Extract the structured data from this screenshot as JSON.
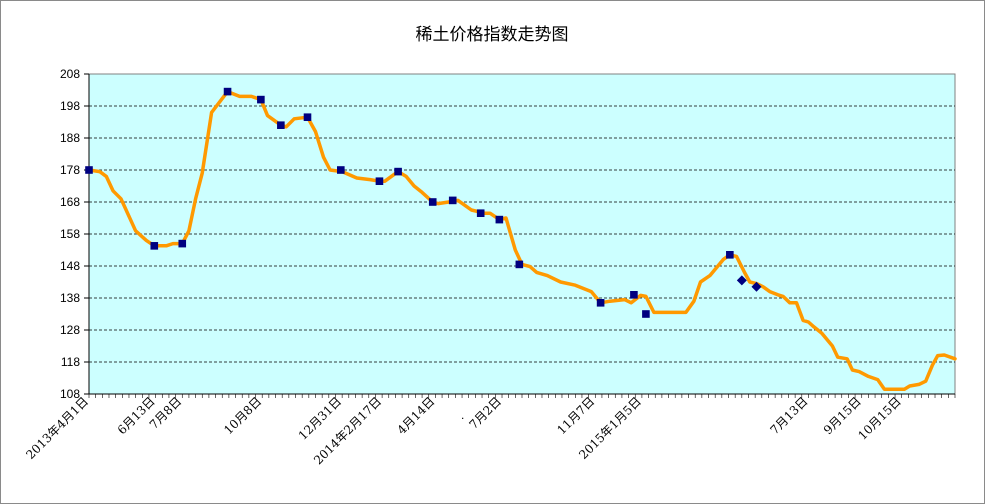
{
  "chart_data": {
    "type": "line",
    "title": "稀土价格指数走势图",
    "xlabel": "",
    "ylabel": "",
    "ylim": [
      108,
      208
    ],
    "y_ticks": [
      108,
      118,
      128,
      138,
      148,
      158,
      168,
      178,
      188,
      198,
      208
    ],
    "x_range": [
      0,
      62
    ],
    "x_tick_labels": [
      {
        "label": "2013年4月1日",
        "x": 0
      },
      {
        "label": "6月13日",
        "x": 5
      },
      {
        "label": "7月8日",
        "x": 7
      },
      {
        "label": "10月8日",
        "x": 13
      },
      {
        "label": "12月31日",
        "x": 19
      },
      {
        "label": "2014年2月17日",
        "x": 22
      },
      {
        "label": "4月14日",
        "x": 26
      },
      {
        "label": "7月2日",
        "x": 31
      },
      {
        "label": "11月7日",
        "x": 38
      },
      {
        "label": "2015年1月5日",
        "x": 41.5
      },
      {
        "label": "7月13日",
        "x": 54
      },
      {
        "label": "9月15日",
        "x": 58
      },
      {
        "label": "10月15日",
        "x": 61
      }
    ],
    "grid": {
      "horizontal": true,
      "vertical": false
    },
    "plot_background": "#ccffff",
    "series": [
      {
        "name": "",
        "color": "#ff9900",
        "marker_color": "#000080",
        "points": [
          {
            "x": 0,
            "y": 178
          },
          {
            "x": 0.8,
            "y": 177.5
          },
          {
            "x": 1.3,
            "y": 176
          },
          {
            "x": 1.8,
            "y": 171.5
          },
          {
            "x": 2.4,
            "y": 169
          },
          {
            "x": 3.5,
            "y": 159
          },
          {
            "x": 4.3,
            "y": 156
          },
          {
            "x": 4.9,
            "y": 154.3
          },
          {
            "x": 5.8,
            "y": 154.3
          },
          {
            "x": 6.3,
            "y": 155
          },
          {
            "x": 7,
            "y": 155
          },
          {
            "x": 7.5,
            "y": 159
          },
          {
            "x": 8,
            "y": 169
          },
          {
            "x": 8.5,
            "y": 177
          },
          {
            "x": 9.2,
            "y": 196
          },
          {
            "x": 10.4,
            "y": 202.5
          },
          {
            "x": 11.3,
            "y": 201
          },
          {
            "x": 12.2,
            "y": 201
          },
          {
            "x": 12.9,
            "y": 200
          },
          {
            "x": 13.4,
            "y": 195
          },
          {
            "x": 14.4,
            "y": 192
          },
          {
            "x": 14.8,
            "y": 191.5
          },
          {
            "x": 15.4,
            "y": 194
          },
          {
            "x": 16.4,
            "y": 194.5
          },
          {
            "x": 17,
            "y": 190
          },
          {
            "x": 17.6,
            "y": 182
          },
          {
            "x": 18.1,
            "y": 178
          },
          {
            "x": 19,
            "y": 177.5
          },
          {
            "x": 20.1,
            "y": 175.5
          },
          {
            "x": 21.1,
            "y": 175
          },
          {
            "x": 21.8,
            "y": 174.5
          },
          {
            "x": 22.2,
            "y": 174.5
          },
          {
            "x": 23.2,
            "y": 177.5
          },
          {
            "x": 23.8,
            "y": 176
          },
          {
            "x": 24.4,
            "y": 173
          },
          {
            "x": 25,
            "y": 171
          },
          {
            "x": 25.8,
            "y": 168
          },
          {
            "x": 26.2,
            "y": 167.5
          },
          {
            "x": 27,
            "y": 168
          },
          {
            "x": 27.7,
            "y": 168.5
          },
          {
            "x": 28.7,
            "y": 165.5
          },
          {
            "x": 29.7,
            "y": 164.5
          },
          {
            "x": 30.1,
            "y": 164.5
          },
          {
            "x": 30.8,
            "y": 162.5
          },
          {
            "x": 31.3,
            "y": 163
          },
          {
            "x": 32,
            "y": 153
          },
          {
            "x": 32.5,
            "y": 148.5
          },
          {
            "x": 33.1,
            "y": 147.8
          },
          {
            "x": 33.6,
            "y": 146
          },
          {
            "x": 34.4,
            "y": 145
          },
          {
            "x": 35.4,
            "y": 143
          },
          {
            "x": 36.5,
            "y": 142
          },
          {
            "x": 37.7,
            "y": 140
          },
          {
            "x": 38.4,
            "y": 136.5
          },
          {
            "x": 39.1,
            "y": 137
          },
          {
            "x": 40.2,
            "y": 137.5
          },
          {
            "x": 40.7,
            "y": 136.5
          },
          {
            "x": 41.4,
            "y": 138.8
          },
          {
            "x": 41.8,
            "y": 138.5
          },
          {
            "x": 42.4,
            "y": 133.5
          },
          {
            "x": 43.4,
            "y": 133.5
          },
          {
            "x": 44.8,
            "y": 133.5
          },
          {
            "x": 45.4,
            "y": 137
          },
          {
            "x": 45.9,
            "y": 143
          },
          {
            "x": 46.6,
            "y": 145
          },
          {
            "x": 47.6,
            "y": 150
          },
          {
            "x": 48.1,
            "y": 151.5
          },
          {
            "x": 48.6,
            "y": 151
          },
          {
            "x": 49.2,
            "y": 146
          },
          {
            "x": 49.6,
            "y": 143
          },
          {
            "x": 50.1,
            "y": 142.5
          },
          {
            "x": 50.6,
            "y": 141.5
          },
          {
            "x": 51.1,
            "y": 140
          },
          {
            "x": 51.7,
            "y": 139
          },
          {
            "x": 52.1,
            "y": 138.5
          },
          {
            "x": 52.6,
            "y": 136.5
          },
          {
            "x": 53.1,
            "y": 136.5
          },
          {
            "x": 53.6,
            "y": 131
          },
          {
            "x": 54,
            "y": 130.5
          },
          {
            "x": 54.4,
            "y": 129
          },
          {
            "x": 55,
            "y": 127
          },
          {
            "x": 55.8,
            "y": 123
          },
          {
            "x": 56.2,
            "y": 119.5
          },
          {
            "x": 56.9,
            "y": 119
          },
          {
            "x": 57.3,
            "y": 115.5
          },
          {
            "x": 57.8,
            "y": 115
          },
          {
            "x": 58.5,
            "y": 113.5
          },
          {
            "x": 59.2,
            "y": 112.5
          },
          {
            "x": 59.7,
            "y": 109.5
          },
          {
            "x": 60.5,
            "y": 109.5
          },
          {
            "x": 61.2,
            "y": 109.5
          },
          {
            "x": 61.6,
            "y": 110.5
          },
          {
            "x": 62.3,
            "y": 111
          },
          {
            "x": 62.8,
            "y": 112
          },
          {
            "x": 63.3,
            "y": 117
          },
          {
            "x": 63.7,
            "y": 120
          },
          {
            "x": 64.2,
            "y": 120.2
          },
          {
            "x": 65,
            "y": 119
          }
        ],
        "markers": [
          {
            "x": 0,
            "y": 178,
            "shape": "square"
          },
          {
            "x": 4.9,
            "y": 154.3,
            "shape": "square"
          },
          {
            "x": 7,
            "y": 155,
            "shape": "square"
          },
          {
            "x": 10.4,
            "y": 202.5,
            "shape": "square"
          },
          {
            "x": 12.9,
            "y": 200,
            "shape": "square"
          },
          {
            "x": 14.4,
            "y": 192,
            "shape": "square"
          },
          {
            "x": 16.4,
            "y": 194.5,
            "shape": "square"
          },
          {
            "x": 18.9,
            "y": 178,
            "shape": "square"
          },
          {
            "x": 21.8,
            "y": 174.5,
            "shape": "square"
          },
          {
            "x": 23.2,
            "y": 177.5,
            "shape": "square"
          },
          {
            "x": 25.8,
            "y": 168,
            "shape": "square"
          },
          {
            "x": 27.3,
            "y": 168.5,
            "shape": "square"
          },
          {
            "x": 29.4,
            "y": 164.5,
            "shape": "square"
          },
          {
            "x": 30.8,
            "y": 162.5,
            "shape": "square"
          },
          {
            "x": 32.3,
            "y": 148.5,
            "shape": "square"
          },
          {
            "x": 38.4,
            "y": 136.5,
            "shape": "square"
          },
          {
            "x": 40.9,
            "y": 139,
            "shape": "square"
          },
          {
            "x": 41.8,
            "y": 133,
            "shape": "square"
          },
          {
            "x": 48.1,
            "y": 151.5,
            "shape": "square"
          },
          {
            "x": 49,
            "y": 143.5,
            "shape": "diamond"
          },
          {
            "x": 50.1,
            "y": 141.5,
            "shape": "diamond"
          }
        ]
      }
    ],
    "annotations": [
      "."
    ]
  }
}
